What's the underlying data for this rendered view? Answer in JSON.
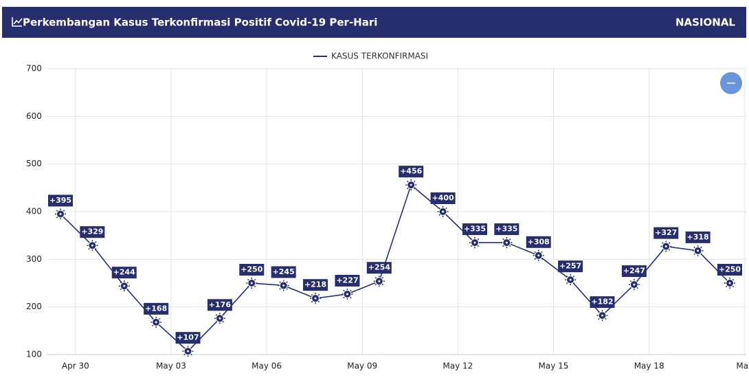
{
  "header": {
    "title": "Perkembangan Kasus Terkonfirmasi Positif Covid-19 Per-Hari",
    "region": "NASIONAL"
  },
  "chart_data": {
    "type": "line",
    "categories": [
      "Apr 30",
      null,
      null,
      "May 03",
      null,
      null,
      "May 06",
      null,
      null,
      "May 09",
      null,
      null,
      "May 12",
      null,
      null,
      "May 15",
      null,
      null,
      "May 18",
      null,
      null,
      "May"
    ],
    "series": [
      {
        "name": "KASUS TERKONFIRMASI",
        "color": "#262e6d",
        "values": [
          395,
          329,
          244,
          168,
          107,
          176,
          250,
          245,
          218,
          227,
          254,
          456,
          400,
          335,
          335,
          308,
          257,
          182,
          247,
          327,
          318,
          250
        ],
        "value_labels": [
          "+395",
          "+329",
          "+244",
          "+168",
          "+107",
          "+176",
          "+250",
          "+245",
          "+218",
          "+227",
          "+254",
          "+456",
          "+400",
          "+335",
          "+335",
          "+308",
          "+257",
          "+182",
          "+247",
          "+327",
          "+318",
          "+250"
        ]
      }
    ],
    "ylim": [
      100,
      700
    ],
    "yticks": [
      100,
      200,
      300,
      400,
      500,
      600,
      700
    ],
    "grid": true
  }
}
